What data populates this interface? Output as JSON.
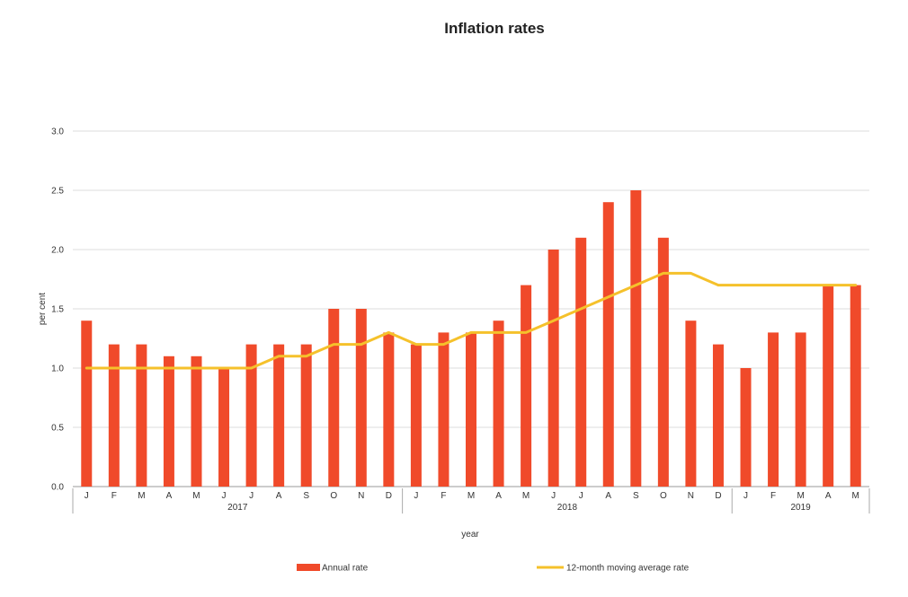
{
  "chart_data": {
    "type": "bar",
    "title": "Inflation rates",
    "xlabel": "year",
    "ylabel": "per cent",
    "ylim": [
      0,
      3.0
    ],
    "yticks": [
      "0.0",
      "0.5",
      "1.0",
      "1.5",
      "2.0",
      "2.5",
      "3.0"
    ],
    "ytick_values": [
      0,
      0.5,
      1.0,
      1.5,
      2.0,
      2.5,
      3.0
    ],
    "grid": true,
    "legend_position": "bottom",
    "categories": [
      "J",
      "F",
      "M",
      "A",
      "M",
      "J",
      "J",
      "A",
      "S",
      "O",
      "N",
      "D",
      "J",
      "F",
      "M",
      "A",
      "M",
      "J",
      "J",
      "A",
      "S",
      "O",
      "N",
      "D",
      "J",
      "F",
      "M",
      "A",
      "M"
    ],
    "groups": [
      {
        "label": "2017",
        "count": 12
      },
      {
        "label": "2018",
        "count": 12
      },
      {
        "label": "2019",
        "count": 5
      }
    ],
    "series": [
      {
        "name": "Annual rate",
        "type": "bar",
        "color": "#f04a2a",
        "values": [
          1.4,
          1.2,
          1.2,
          1.1,
          1.1,
          1.0,
          1.2,
          1.2,
          1.2,
          1.5,
          1.5,
          1.3,
          1.2,
          1.3,
          1.3,
          1.4,
          1.7,
          2.0,
          2.1,
          2.4,
          2.5,
          2.1,
          1.4,
          1.2,
          1.0,
          1.3,
          1.3,
          1.7,
          1.7
        ]
      },
      {
        "name": "12-month moving average rate",
        "type": "line",
        "color": "#f5c12b",
        "values": [
          1.0,
          1.0,
          1.0,
          1.0,
          1.0,
          1.0,
          1.0,
          1.1,
          1.1,
          1.2,
          1.2,
          1.3,
          1.2,
          1.2,
          1.3,
          1.3,
          1.3,
          1.4,
          1.5,
          1.6,
          1.7,
          1.8,
          1.8,
          1.7,
          1.7,
          1.7,
          1.7,
          1.7,
          1.7
        ]
      }
    ]
  }
}
